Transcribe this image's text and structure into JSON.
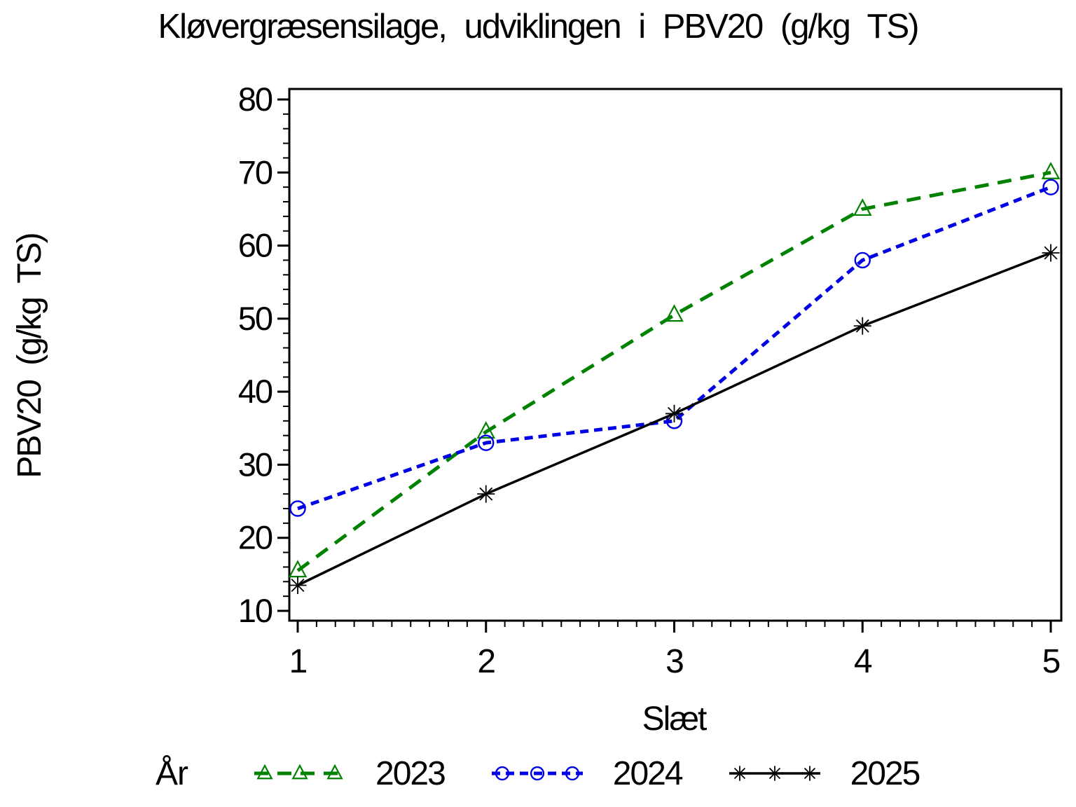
{
  "title": "Kløvergræsensilage, udviklingen i PBV20 (g/kg TS)",
  "chart_data": {
    "type": "line",
    "title": "Kløvergræsensilage, udviklingen i PBV20 (g/kg TS)",
    "xlabel": "Slæt",
    "ylabel": "PBV20 (g/kg TS)",
    "legend_title": "År",
    "legend_position": "bottom",
    "grid": false,
    "background": "#ffffff",
    "x": [
      1,
      2,
      3,
      4,
      5
    ],
    "x_ticks": [
      1,
      2,
      3,
      4,
      5
    ],
    "y_ticks": [
      10,
      20,
      30,
      40,
      50,
      60,
      70,
      80
    ],
    "x_minor_step": 0.1,
    "y_minor_step": 2,
    "xlim": [
      0.95,
      5.06
    ],
    "ylim": [
      8.7,
      81.6
    ],
    "series": [
      {
        "name": "2023",
        "color": "#008200",
        "line_style": "dashed",
        "dash": "20 13",
        "marker": "triangle",
        "values": [
          15.5,
          34.5,
          50.5,
          65,
          70
        ]
      },
      {
        "name": "2024",
        "color": "#0000e6",
        "line_style": "dashed",
        "dash": "12 8",
        "marker": "circle",
        "values": [
          24,
          33,
          36,
          58,
          68
        ]
      },
      {
        "name": "2025",
        "color": "#000000",
        "line_style": "solid",
        "dash": "",
        "marker": "asterisk",
        "values": [
          13.5,
          26,
          37,
          49,
          59
        ]
      }
    ]
  }
}
